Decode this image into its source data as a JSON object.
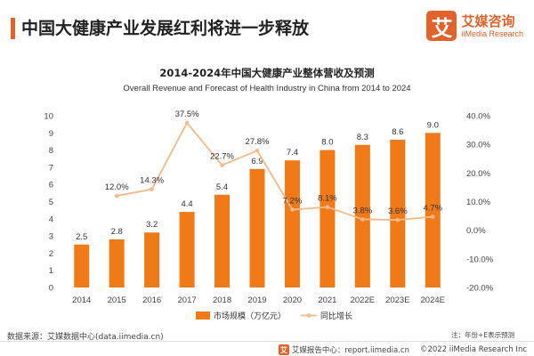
{
  "header": {
    "title": "中国大健康产业发展红利将进一步释放",
    "brand_logo_char": "艾",
    "brand_name": "艾媒咨询",
    "brand_sub": "iiMedia Research"
  },
  "colors": {
    "accent": "#e2622b",
    "bar": "#f07a17",
    "line": "#f6b98a"
  },
  "chart_data": {
    "type": "bar+line",
    "title": "2014-2024年中国大健康产业整体营收及预测",
    "subtitle": "Overall Revenue and Forecast of Health Industry in China from 2014 to 2024",
    "categories": [
      "2014",
      "2015",
      "2016",
      "2017",
      "2018",
      "2019",
      "2020",
      "2021",
      "2022E",
      "2023E",
      "2024E"
    ],
    "series": [
      {
        "name": "市场规模（万亿元）",
        "type": "bar",
        "axis": "left",
        "values": [
          2.5,
          2.8,
          3.2,
          4.4,
          5.4,
          6.9,
          7.4,
          8.0,
          8.3,
          8.6,
          9.0
        ],
        "labels": [
          "2.5",
          "2.8",
          "3.2",
          "4.4",
          "5.4",
          "6.9",
          "7.4",
          "8.0",
          "8.3",
          "8.6",
          "9.0"
        ]
      },
      {
        "name": "同比增长",
        "type": "line",
        "axis": "right",
        "values": [
          null,
          12.0,
          14.3,
          37.5,
          22.7,
          27.8,
          7.2,
          8.1,
          3.8,
          3.6,
          4.7
        ],
        "labels": [
          "",
          "12.0%",
          "14.3%",
          "37.5%",
          "22.7%",
          "27.8%",
          "7.2%",
          "8.1%",
          "3.8%",
          "3.6%",
          "4.7%"
        ]
      }
    ],
    "y_left": {
      "min": 0,
      "max": 10,
      "ticks": [
        "0",
        "1",
        "2",
        "3",
        "4",
        "5",
        "6",
        "7",
        "8",
        "9",
        "10"
      ]
    },
    "y_right": {
      "min": -20,
      "max": 40,
      "ticks": [
        "-20.0%",
        "-10.0%",
        "0.0%",
        "10.0%",
        "20.0%",
        "30.0%",
        "40.0%"
      ]
    },
    "grid": false,
    "legend_position": "bottom"
  },
  "footer": {
    "source": "数据来源：艾媒数据中心(data.iimedia.cn)",
    "note": "注：年份+E表示预测",
    "report_center": "艾媒报告中心：report.iimedia.cn",
    "copyright": "©2022  iiMedia Research  Inc"
  }
}
